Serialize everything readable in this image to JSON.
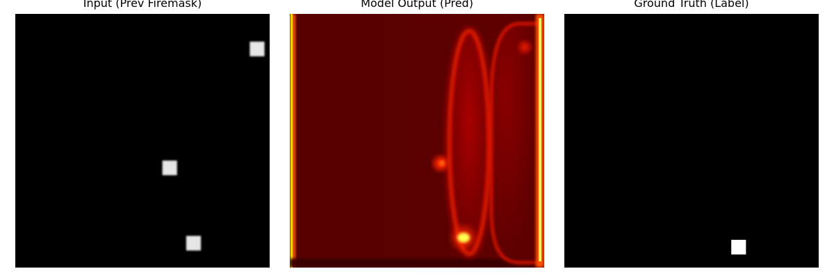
{
  "chart_data": [
    {
      "type": "heatmap",
      "title": "Input (Prev Firemask)",
      "colormap": "gray",
      "background": "#000000",
      "axes_visible": false,
      "grid_size": [
        64,
        64
      ],
      "hot_cells": [
        {
          "row": 7,
          "col": 59,
          "value": 0.9
        },
        {
          "row": 37,
          "col": 37,
          "value": 0.9
        },
        {
          "row": 56,
          "col": 43,
          "value": 0.9
        }
      ]
    },
    {
      "type": "heatmap",
      "title": "Model Output (Pred)",
      "colormap": "hot",
      "axes_visible": false,
      "colors": {
        "base": "#560000",
        "mid": "#c20a00",
        "bright": "#ff2a00",
        "hottest": "#ffff40"
      }
    },
    {
      "type": "heatmap",
      "title": "Ground Truth (Label)",
      "colormap": "gray",
      "background": "#000000",
      "axes_visible": false,
      "grid_size": [
        64,
        64
      ],
      "hot_cells": [
        {
          "row": 57,
          "col": 42,
          "value": 1.0
        }
      ]
    }
  ]
}
